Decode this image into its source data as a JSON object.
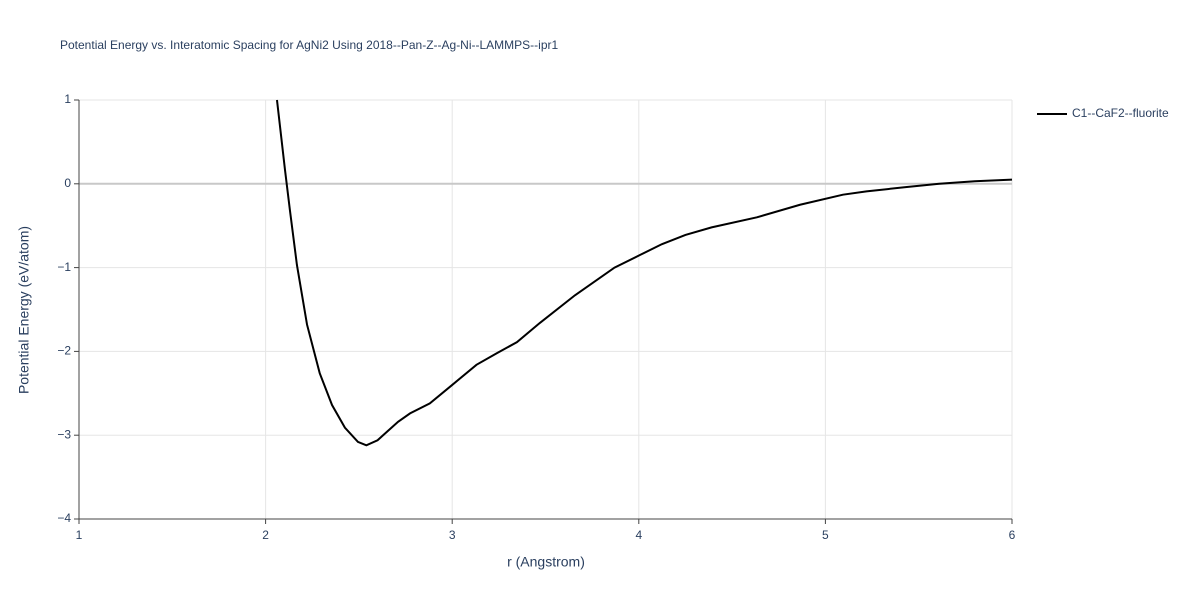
{
  "chart_data": {
    "type": "line",
    "title": "Potential Energy vs. Interatomic Spacing for AgNi2 Using 2018--Pan-Z--Ag-Ni--LAMMPS--ipr1",
    "x_label": "r (Angstrom)",
    "y_label": "Potential Energy (eV/atom)",
    "x": [
      2.061,
      2.104,
      2.13,
      2.168,
      2.222,
      2.29,
      2.356,
      2.425,
      2.495,
      2.54,
      2.6,
      2.71,
      2.774,
      2.88,
      3.0,
      3.13,
      3.24,
      3.347,
      3.47,
      3.658,
      3.87,
      4.006,
      4.124,
      4.25,
      4.39,
      4.633,
      4.864,
      5.094,
      5.22,
      5.43,
      5.61,
      5.8,
      6.0
    ],
    "series": [
      {
        "name": "C1--CaF2--fluorite",
        "color": "#000000",
        "values": [
          1.0,
          0.165,
          -0.31,
          -0.97,
          -1.68,
          -2.26,
          -2.64,
          -2.91,
          -3.08,
          -3.12,
          -3.06,
          -2.84,
          -2.74,
          -2.62,
          -2.4,
          -2.16,
          -2.02,
          -1.89,
          -1.66,
          -1.33,
          -1.0,
          -0.85,
          -0.72,
          -0.61,
          -0.52,
          -0.4,
          -0.25,
          -0.13,
          -0.09,
          -0.04,
          0.0,
          0.03,
          0.05
        ]
      }
    ],
    "xlim": [
      1,
      6
    ],
    "xticks": [
      1,
      2,
      3,
      4,
      5,
      6
    ],
    "ylim": [
      -4,
      1
    ],
    "yticks": [
      {
        "value": -4,
        "label": "−4"
      },
      {
        "value": -3,
        "label": "−3"
      },
      {
        "value": -2,
        "label": "−2"
      },
      {
        "value": -1,
        "label": "−1"
      },
      0,
      1
    ],
    "grid": true,
    "legend": "right"
  }
}
